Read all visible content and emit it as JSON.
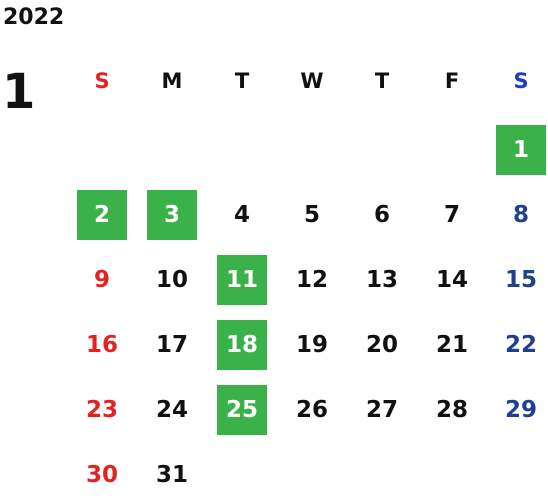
{
  "calendar": {
    "year": "2022",
    "month": "1",
    "weekdays": [
      {
        "label": "S",
        "color": "#e52222"
      },
      {
        "label": "M",
        "color": "#111111"
      },
      {
        "label": "T",
        "color": "#111111"
      },
      {
        "label": "W",
        "color": "#111111"
      },
      {
        "label": "T",
        "color": "#111111"
      },
      {
        "label": "F",
        "color": "#111111"
      },
      {
        "label": "S",
        "color": "#1a3bcc"
      }
    ],
    "first_weekday_index": 6,
    "days": [
      {
        "day": "1",
        "highlight": true
      },
      {
        "day": "2",
        "highlight": true
      },
      {
        "day": "3",
        "highlight": true
      },
      {
        "day": "4",
        "highlight": false
      },
      {
        "day": "5",
        "highlight": false
      },
      {
        "day": "6",
        "highlight": false
      },
      {
        "day": "7",
        "highlight": false
      },
      {
        "day": "8",
        "highlight": false
      },
      {
        "day": "9",
        "highlight": false
      },
      {
        "day": "10",
        "highlight": false
      },
      {
        "day": "11",
        "highlight": true
      },
      {
        "day": "12",
        "highlight": false
      },
      {
        "day": "13",
        "highlight": false
      },
      {
        "day": "14",
        "highlight": false
      },
      {
        "day": "15",
        "highlight": false
      },
      {
        "day": "16",
        "highlight": false
      },
      {
        "day": "17",
        "highlight": false
      },
      {
        "day": "18",
        "highlight": true
      },
      {
        "day": "19",
        "highlight": false
      },
      {
        "day": "20",
        "highlight": false
      },
      {
        "day": "21",
        "highlight": false
      },
      {
        "day": "22",
        "highlight": false
      },
      {
        "day": "23",
        "highlight": false
      },
      {
        "day": "24",
        "highlight": false
      },
      {
        "day": "25",
        "highlight": true
      },
      {
        "day": "26",
        "highlight": false
      },
      {
        "day": "27",
        "highlight": false
      },
      {
        "day": "28",
        "highlight": false
      },
      {
        "day": "29",
        "highlight": false
      },
      {
        "day": "30",
        "highlight": false
      },
      {
        "day": "31",
        "highlight": false
      }
    ],
    "colors": {
      "sunday": "#e52222",
      "saturday": "#1a3bcc",
      "saturday_date": "#1f3f8f",
      "weekday": "#111111",
      "holiday_bg": "#3bb14a",
      "holiday_text": "#ffffff"
    }
  }
}
